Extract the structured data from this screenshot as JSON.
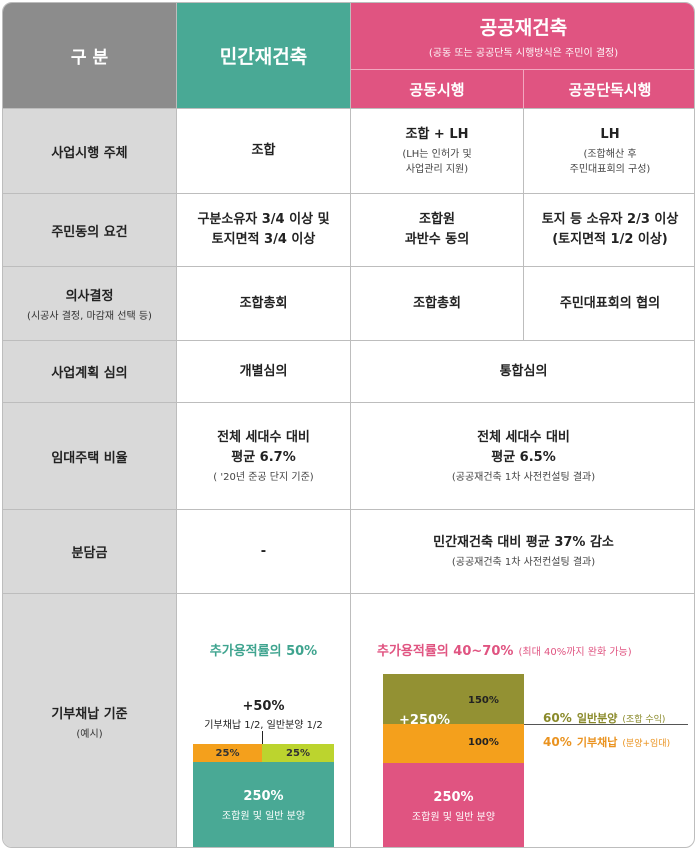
{
  "header": {
    "col0": "구 분",
    "private": "민간재건축",
    "public": "공공재건축",
    "public_note": "(공동 또는 공공단독 시행방식은 주민이 결정)",
    "joint": "공동시행",
    "sole": "공공단독시행"
  },
  "rows": {
    "operator": {
      "label": "사업시행 주체",
      "private": "조합",
      "joint_main": "조합 + LH",
      "joint_sub1": "(LH는 인허가 및",
      "joint_sub2": "사업관리 지원)",
      "sole_main": "LH",
      "sole_sub1": "(조합해산 후",
      "sole_sub2": "주민대표회의 구성)"
    },
    "consent": {
      "label": "주민동의 요건",
      "private_1": "구분소유자 3/4 이상 및",
      "private_2": "토지면적 3/4 이상",
      "joint_1": "조합원",
      "joint_2": "과반수 동의",
      "sole_1": "토지 등 소유자 2/3 이상",
      "sole_2": "(토지면적 1/2 이상)"
    },
    "decision": {
      "label": "의사결정",
      "label_sub": "(시공사 결정, 마감재 선택 등)",
      "private": "조합총회",
      "joint": "조합총회",
      "sole": "주민대표회의 협의"
    },
    "review": {
      "label": "사업계획 심의",
      "private": "개별심의",
      "public": "통합심의"
    },
    "rental": {
      "label": "임대주택 비율",
      "private_1": "전체 세대수 대비",
      "private_2": "평균 6.7%",
      "private_sub": "( '20년 준공 단지 기준)",
      "public_1": "전체 세대수 대비",
      "public_2": "평균 6.5%",
      "public_sub": "(공공재건축 1차 사전컨설팅 결과)"
    },
    "burden": {
      "label": "분담금",
      "private": "-",
      "public_main": "민간재건축 대비 평균 37% 감소",
      "public_sub": "(공공재건축 1차 사전컨설팅 결과)"
    },
    "donation": {
      "label": "기부채납 기준",
      "label_sub": "(예시)",
      "private": {
        "title": "추가용적률의 50%",
        "plus": "+50%",
        "plus_sub": "기부채납 1/2, 일반분양 1/2",
        "left_pct": "25%",
        "right_pct": "25%",
        "base_pct": "250%",
        "base_label": "조합원 및 일반 분양",
        "color_orange": "#f4a01c",
        "color_lime": "#bcd42e",
        "color_base": "#49a995"
      },
      "public": {
        "title": "추가용적률의 40~70%",
        "title_note": "(최대 40%까지 완화 가능)",
        "plus": "+250%",
        "top_pct": "150%",
        "mid_pct": "100%",
        "base_pct": "250%",
        "base_label": "조합원 및 일반 분양",
        "legend1_pct": "60%",
        "legend1_text": "일반분양",
        "legend1_note": "(조합 수익)",
        "legend2_pct": "40%",
        "legend2_text": "기부채납",
        "legend2_note": "(분양+임대)",
        "color_olive": "#939133",
        "color_orange": "#f4a01c",
        "color_base": "#e05481"
      }
    }
  }
}
